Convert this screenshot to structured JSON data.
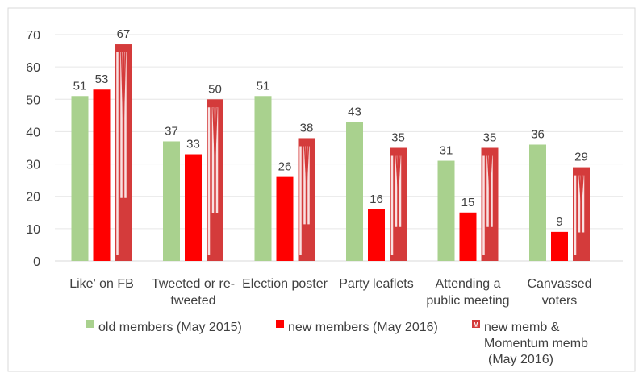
{
  "chart_data": {
    "type": "bar",
    "categories": [
      "Like' on FB",
      "Tweeted or re-|tweeted",
      "Election poster",
      "Party leaflets",
      "Attending a|public meeting",
      "Canvassed|voters"
    ],
    "series": [
      {
        "name": "old members (May 2015)",
        "values": [
          51,
          37,
          51,
          43,
          31,
          36
        ],
        "color": "#a9d18e"
      },
      {
        "name": "new members (May 2016)",
        "values": [
          53,
          33,
          26,
          16,
          15,
          9
        ],
        "color": "#ff0000"
      },
      {
        "name": "new memb & Momentum memb (May 2016)",
        "values": [
          67,
          50,
          38,
          35,
          35,
          29
        ],
        "color": "#d43b3b",
        "pattern": "momentum-logo"
      }
    ],
    "ylim": [
      0,
      70
    ],
    "yticks": [
      0,
      10,
      20,
      30,
      40,
      50,
      60,
      70
    ],
    "grid": true,
    "legend": "bottom",
    "data_labels": true
  }
}
